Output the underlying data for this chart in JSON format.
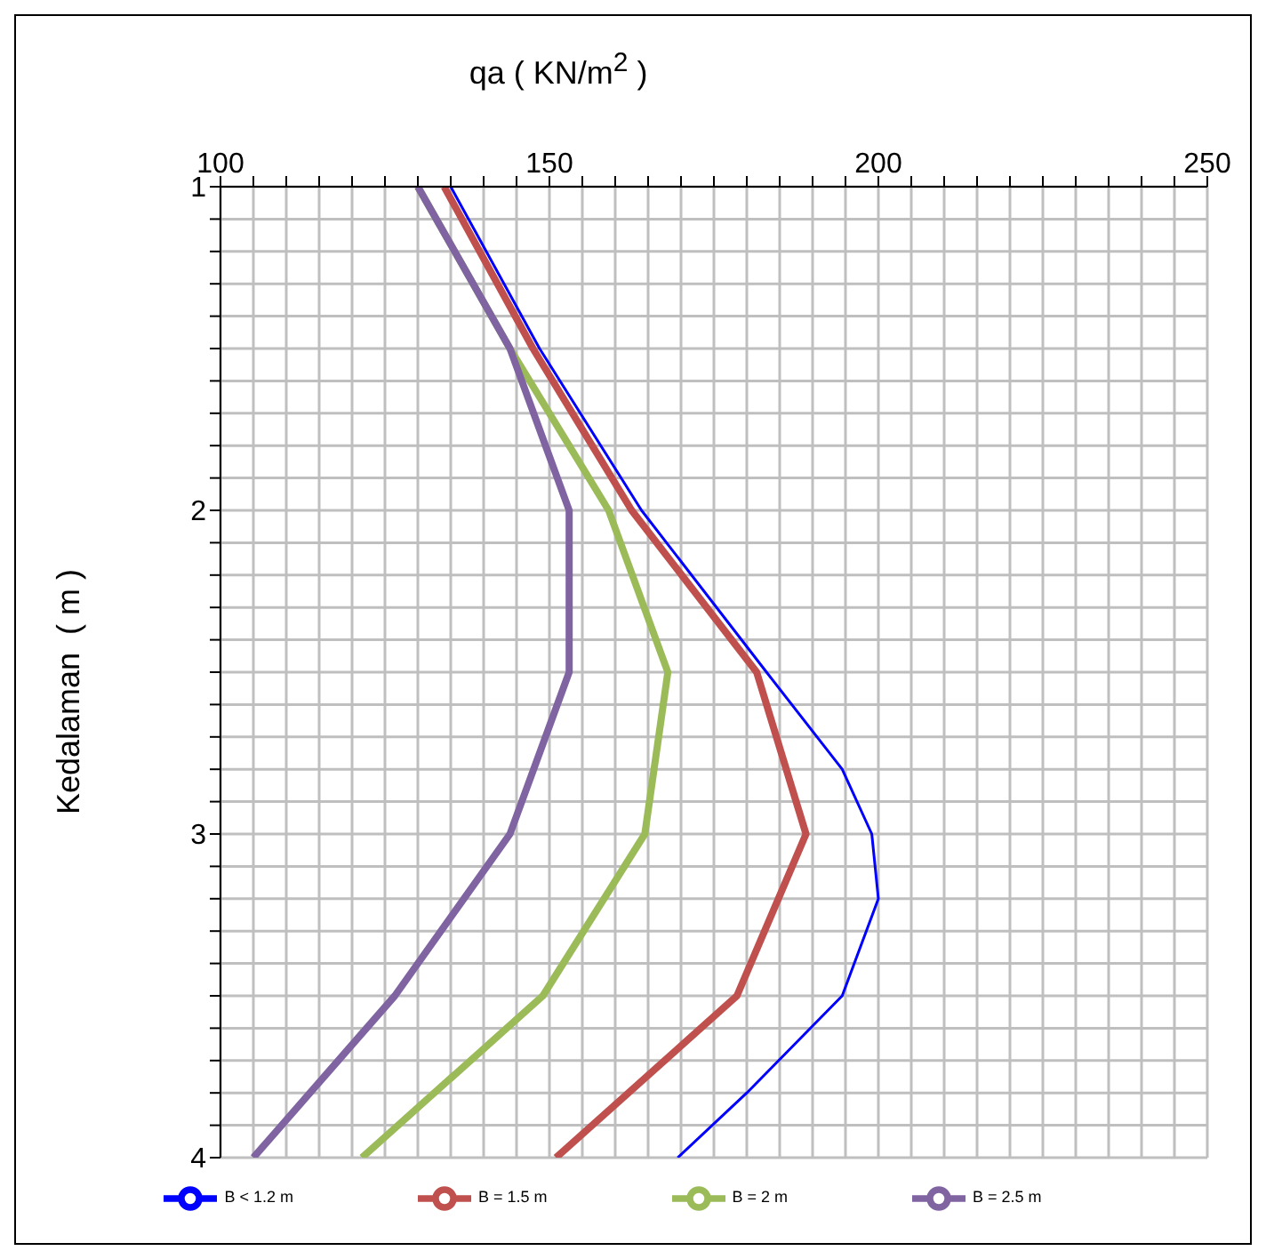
{
  "chart_data": {
    "type": "line",
    "xlabel": "qa ( KN/m$^{2}$ )",
    "ylabel": "Kedalaman  ( m )",
    "xlim": [
      100,
      250
    ],
    "xticks": [
      100,
      {
        "value": 105,
        "label": null
      },
      {
        "value": 110,
        "label": null
      },
      {
        "value": 115,
        "label": null
      },
      {
        "value": 120,
        "label": null
      },
      {
        "value": 125,
        "label": null
      },
      {
        "value": 130,
        "label": null
      },
      {
        "value": 135,
        "label": null
      },
      {
        "value": 140,
        "label": null
      },
      {
        "value": 145,
        "label": null
      },
      150,
      {
        "value": 155,
        "label": null
      },
      {
        "value": 160,
        "label": null
      },
      {
        "value": 165,
        "label": null
      },
      {
        "value": 170,
        "label": null
      },
      {
        "value": 175,
        "label": null
      },
      {
        "value": 180,
        "label": null
      },
      {
        "value": 185,
        "label": null
      },
      {
        "value": 190,
        "label": null
      },
      {
        "value": 195,
        "label": null
      },
      200,
      {
        "value": 205,
        "label": null
      },
      {
        "value": 210,
        "label": null
      },
      {
        "value": 215,
        "label": null
      },
      {
        "value": 220,
        "label": null
      },
      {
        "value": 225,
        "label": null
      },
      {
        "value": 230,
        "label": null
      },
      {
        "value": 235,
        "label": null
      },
      {
        "value": 240,
        "label": null
      },
      {
        "value": 245,
        "label": null
      },
      250
    ],
    "ylim": [
      4,
      1
    ],
    "yticks": [
      1,
      {
        "value": 1.1,
        "label": null
      },
      {
        "value": 1.2,
        "label": null
      },
      {
        "value": 1.3,
        "label": null
      },
      {
        "value": 1.4,
        "label": null
      },
      {
        "value": 1.5,
        "label": null
      },
      {
        "value": 1.6,
        "label": null
      },
      {
        "value": 1.7,
        "label": null
      },
      {
        "value": 1.8,
        "label": null
      },
      {
        "value": 1.9,
        "label": null
      },
      2,
      {
        "value": 2.1,
        "label": null
      },
      {
        "value": 2.2,
        "label": null
      },
      {
        "value": 2.3,
        "label": null
      },
      {
        "value": 2.4,
        "label": null
      },
      {
        "value": 2.5,
        "label": null
      },
      {
        "value": 2.6,
        "label": null
      },
      {
        "value": 2.7,
        "label": null
      },
      {
        "value": 2.8,
        "label": null
      },
      {
        "value": 2.9,
        "label": null
      },
      3,
      {
        "value": 3.1,
        "label": null
      },
      {
        "value": 3.2,
        "label": null
      },
      {
        "value": 3.3,
        "label": null
      },
      {
        "value": 3.4,
        "label": null
      },
      {
        "value": 3.5,
        "label": null
      },
      {
        "value": 3.6,
        "label": null
      },
      {
        "value": 3.7,
        "label": null
      },
      {
        "value": 3.8,
        "label": null
      },
      {
        "value": 3.9,
        "label": null
      },
      4
    ],
    "grid": true,
    "legend": "bottom",
    "marker": "none",
    "line_style": "solid",
    "series": [
      {
        "name": "B < 1.2 m",
        "color": "#0000ff",
        "x": [
          135,
          148.5,
          164,
          183,
          194.5,
          199,
          200,
          194.5,
          180,
          169.5
        ],
        "values": [
          1,
          1.5,
          2,
          2.5,
          2.8,
          3,
          3.2,
          3.5,
          3.8,
          4
        ]
      },
      {
        "name": "B = 1.5 m",
        "color": "#c0504d",
        "x": [
          134,
          147.5,
          162.5,
          181.5,
          189,
          178.5,
          151
        ],
        "values": [
          1,
          1.5,
          2,
          2.5,
          3,
          3.5,
          4
        ]
      },
      {
        "name": "B = 2 m",
        "color": "#9bbb59",
        "x": [
          130,
          144,
          159,
          168,
          164.5,
          149,
          121.5
        ],
        "values": [
          1,
          1.5,
          2,
          2.5,
          3,
          3.5,
          4
        ]
      },
      {
        "name": "B = 2.5 m",
        "color": "#8064a2",
        "x": [
          130,
          144,
          153,
          153,
          144,
          126.5,
          105
        ],
        "values": [
          1,
          1.5,
          2,
          2.5,
          3,
          3.5,
          4
        ]
      }
    ]
  }
}
